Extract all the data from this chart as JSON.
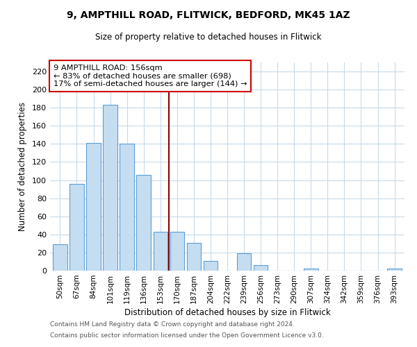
{
  "title": "9, AMPTHILL ROAD, FLITWICK, BEDFORD, MK45 1AZ",
  "subtitle": "Size of property relative to detached houses in Flitwick",
  "xlabel": "Distribution of detached houses by size in Flitwick",
  "ylabel": "Number of detached properties",
  "bar_color": "#c5ddf0",
  "bar_edge_color": "#5a9fd4",
  "categories": [
    "50sqm",
    "67sqm",
    "84sqm",
    "101sqm",
    "119sqm",
    "136sqm",
    "153sqm",
    "170sqm",
    "187sqm",
    "204sqm",
    "222sqm",
    "239sqm",
    "256sqm",
    "273sqm",
    "290sqm",
    "307sqm",
    "324sqm",
    "342sqm",
    "359sqm",
    "376sqm",
    "393sqm"
  ],
  "values": [
    29,
    96,
    141,
    183,
    140,
    106,
    43,
    43,
    31,
    11,
    0,
    19,
    6,
    0,
    0,
    2,
    0,
    0,
    0,
    0,
    2
  ],
  "ylim": [
    0,
    230
  ],
  "yticks": [
    0,
    20,
    40,
    60,
    80,
    100,
    120,
    140,
    160,
    180,
    200,
    220
  ],
  "vline_x": 6.5,
  "vline_color": "#8b0000",
  "annotation_line1": "9 AMPTHILL ROAD: 156sqm",
  "annotation_line2": "← 83% of detached houses are smaller (698)",
  "annotation_line3": "17% of semi-detached houses are larger (144) →",
  "footer1": "Contains HM Land Registry data © Crown copyright and database right 2024.",
  "footer2": "Contains public sector information licensed under the Open Government Licence v3.0.",
  "background_color": "#ffffff",
  "grid_color": "#c8daea"
}
